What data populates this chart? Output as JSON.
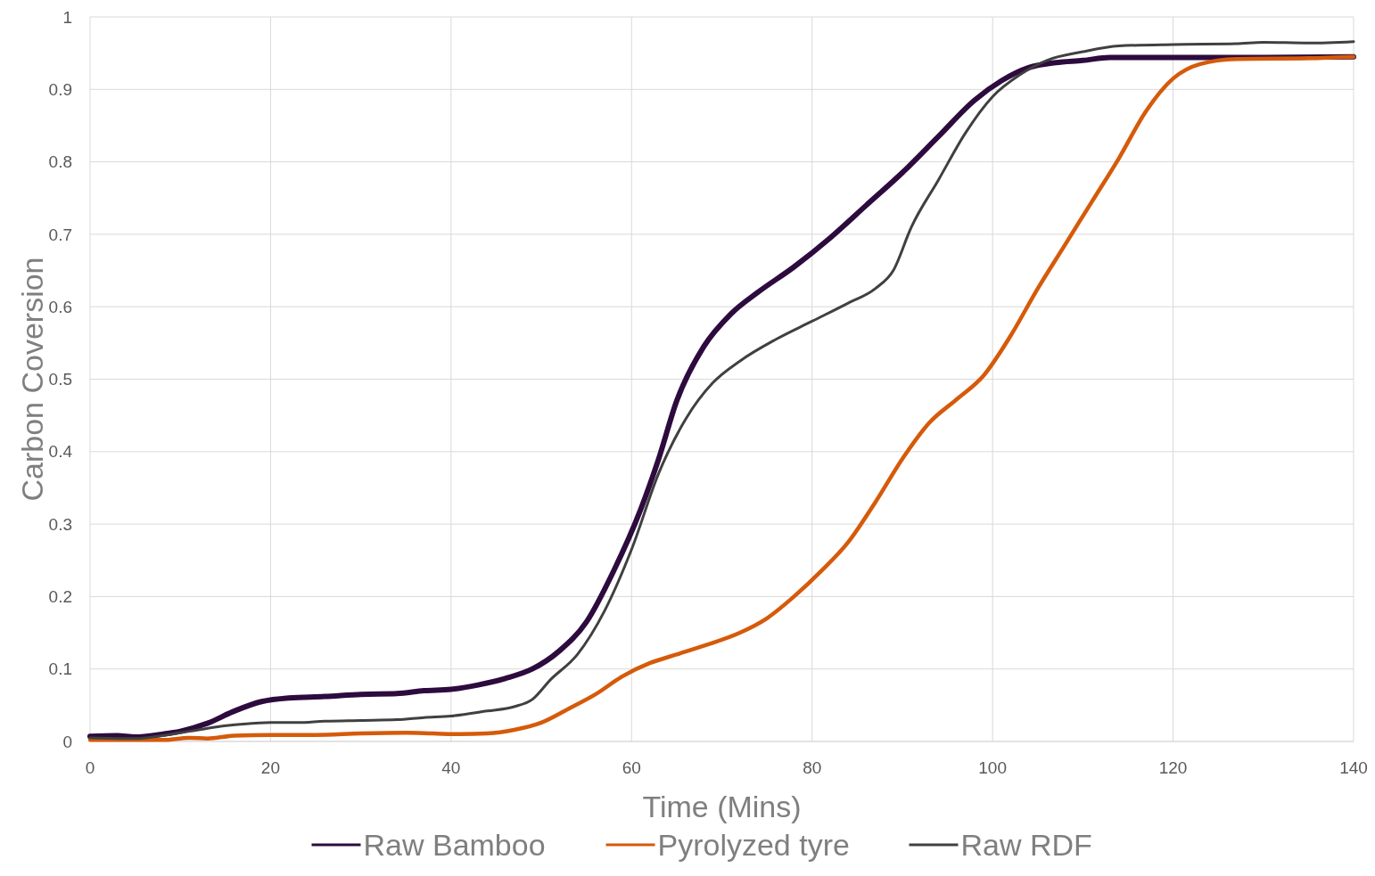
{
  "chart_data": {
    "type": "line",
    "xlabel": "Time (Mins)",
    "ylabel": "Carbon Coversion",
    "xlim": [
      0,
      140
    ],
    "xticks": [
      0,
      20,
      40,
      60,
      80,
      100,
      120,
      140
    ],
    "ylim": [
      0,
      1
    ],
    "yticks": [
      0,
      0.1,
      0.2,
      0.3,
      0.4,
      0.5,
      0.6,
      0.7,
      0.8,
      0.9,
      1
    ],
    "grid": true,
    "legend": "bottom",
    "marker": "none",
    "line_style": "solid",
    "series": [
      {
        "name": "Raw Bamboo",
        "color": "#2d0b3e",
        "x": [
          0,
          3,
          5,
          8,
          10,
          13,
          16,
          19,
          22,
          26,
          30,
          34,
          37,
          40,
          43,
          46,
          49,
          52,
          55,
          58,
          61,
          63,
          65,
          68,
          71,
          74,
          78,
          82,
          86,
          90,
          94,
          98,
          101,
          104,
          107,
          110,
          113,
          120,
          130,
          140
        ],
        "values": [
          0.007,
          0.008,
          0.006,
          0.01,
          0.014,
          0.025,
          0.042,
          0.055,
          0.06,
          0.062,
          0.065,
          0.066,
          0.07,
          0.072,
          0.078,
          0.087,
          0.1,
          0.125,
          0.165,
          0.235,
          0.32,
          0.39,
          0.47,
          0.545,
          0.59,
          0.62,
          0.655,
          0.695,
          0.74,
          0.785,
          0.835,
          0.885,
          0.912,
          0.93,
          0.937,
          0.94,
          0.944,
          0.944,
          0.944,
          0.945
        ]
      },
      {
        "name": "Pyrolyzed tyre",
        "color": "#d55a0a",
        "x": [
          0,
          5,
          8,
          11,
          13,
          16,
          20,
          25,
          30,
          35,
          38,
          41,
          44,
          47,
          50,
          53,
          56,
          59,
          62,
          65,
          68,
          72,
          75,
          78,
          81,
          84,
          87,
          90,
          93,
          96,
          99,
          102,
          105,
          108,
          111,
          114,
          117,
          120,
          123,
          127,
          135,
          140
        ],
        "values": [
          0.002,
          0.002,
          0.002,
          0.005,
          0.004,
          0.008,
          0.009,
          0.009,
          0.011,
          0.012,
          0.011,
          0.01,
          0.011,
          0.016,
          0.026,
          0.045,
          0.065,
          0.09,
          0.108,
          0.12,
          0.132,
          0.15,
          0.17,
          0.2,
          0.235,
          0.275,
          0.33,
          0.39,
          0.44,
          0.472,
          0.505,
          0.56,
          0.625,
          0.685,
          0.745,
          0.805,
          0.87,
          0.915,
          0.935,
          0.942,
          0.943,
          0.945
        ]
      },
      {
        "name": "Raw RDF",
        "color": "#404040",
        "x": [
          0,
          5,
          8,
          11,
          14,
          17,
          20,
          23,
          26,
          30,
          34,
          37,
          40,
          44,
          47,
          49,
          51,
          54,
          57,
          60,
          63,
          66,
          69,
          72,
          76,
          80,
          84,
          87,
          89,
          91,
          94,
          97,
          100,
          103,
          106,
          110,
          114,
          120,
          127,
          130,
          135,
          140
        ],
        "values": [
          0.005,
          0.004,
          0.008,
          0.014,
          0.02,
          0.024,
          0.026,
          0.026,
          0.028,
          0.029,
          0.03,
          0.033,
          0.035,
          0.042,
          0.048,
          0.058,
          0.085,
          0.12,
          0.18,
          0.265,
          0.37,
          0.445,
          0.495,
          0.525,
          0.555,
          0.58,
          0.605,
          0.625,
          0.65,
          0.71,
          0.775,
          0.84,
          0.89,
          0.92,
          0.94,
          0.952,
          0.96,
          0.962,
          0.963,
          0.965,
          0.964,
          0.966
        ]
      }
    ]
  }
}
